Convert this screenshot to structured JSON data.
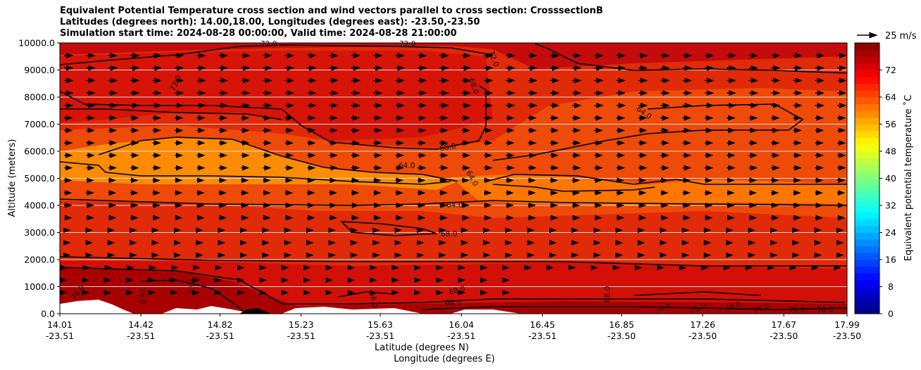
{
  "title": {
    "line1": "Equivalent Potential Temperature cross section and wind vectors parallel to cross section: CrosssectionB",
    "line2": "Latitudes (degrees north): 14.00,18.00, Longitudes (degrees east): -23.50,-23.50",
    "line3": "Simulation start time: 2024-08-28 00:00:00, Valid time: 2024-08-28 21:00:00"
  },
  "chart_data": {
    "type": "heatmap",
    "ylabel": "Altitude (meters)",
    "xlabel_lat": "Latitude (degrees N)",
    "xlabel_lon": "Longitude (degrees E)",
    "ylim": [
      0,
      10000
    ],
    "y_ticks": [
      "0.0",
      "1000.0",
      "2000.0",
      "3000.0",
      "4000.0",
      "5000.0",
      "6000.0",
      "7000.0",
      "8000.0",
      "9000.0",
      "10000.0"
    ],
    "x_ticks": [
      {
        "lat": "14.01",
        "lon": "-23.51"
      },
      {
        "lat": "14.42",
        "lon": "-23.51"
      },
      {
        "lat": "14.82",
        "lon": "-23.51"
      },
      {
        "lat": "15.23",
        "lon": "-23.51"
      },
      {
        "lat": "15.63",
        "lon": "-23.51"
      },
      {
        "lat": "16.04",
        "lon": "-23.51"
      },
      {
        "lat": "16.45",
        "lon": "-23.51"
      },
      {
        "lat": "16.85",
        "lon": "-23.50"
      },
      {
        "lat": "17.26",
        "lon": "-23.50"
      },
      {
        "lat": "17.67",
        "lon": "-23.50"
      },
      {
        "lat": "17.99",
        "lon": "-23.50"
      }
    ],
    "colorbar": {
      "label": "Equivalent potential temperature ˚C",
      "range": [
        0,
        80
      ],
      "ticks": [
        "0",
        "8",
        "16",
        "24",
        "32",
        "40",
        "48",
        "56",
        "64",
        "72"
      ]
    },
    "wind_key": {
      "label": "25 m/s"
    },
    "contour_labels": [
      "72.0",
      "64.0",
      "68.0",
      "76.0"
    ],
    "grid": true,
    "colormap": "jet"
  }
}
